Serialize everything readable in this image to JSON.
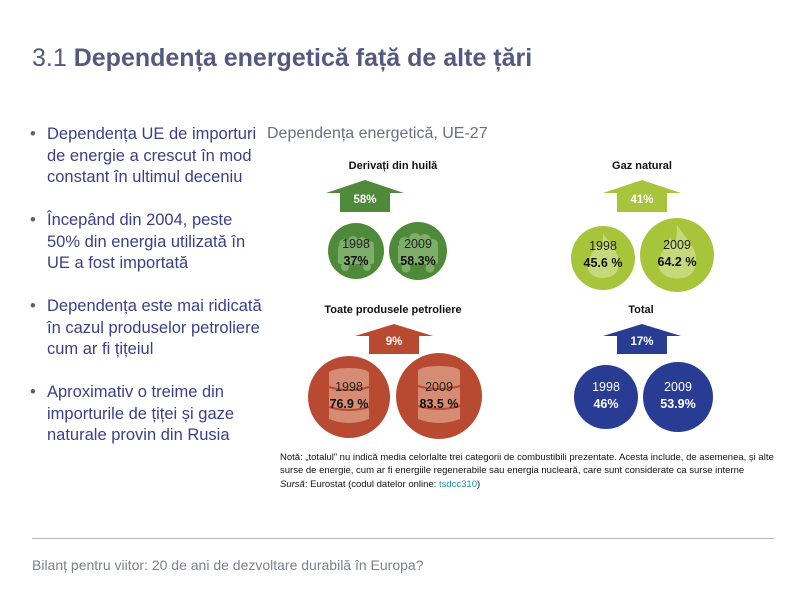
{
  "slide": {
    "title_number": "3.1",
    "title_text": "Dependența energetică față de alte țări"
  },
  "bullets": [
    "Dependența UE de importuri de energie a crescut în mod constant în ultimul deceniu",
    "Începând din 2004, peste 50% din energia utilizată în UE a fost importată",
    "Dependența este mai ridicată în cazul produselor petroliere cum ar fi țițeiul",
    "Aproximativ o treime din importurile de țiței și gaze naturale provin din Rusia"
  ],
  "infographic": {
    "title": "Dependența energetică, UE-27",
    "categories": [
      {
        "label": "Derivați din huilă",
        "change": "58%",
        "year_a": "1998",
        "value_a": "37%",
        "year_b": "2009",
        "value_b": "58.3%",
        "color": "#4e8a3a",
        "icon": "coal-wagon-icon"
      },
      {
        "label": "Gaz natural",
        "change": "41%",
        "year_a": "1998",
        "value_a": "45.6 %",
        "year_b": "2009",
        "value_b": "64.2 %",
        "color": "#a8c43a",
        "icon": "gas-flame-icon"
      },
      {
        "label": "Toate produsele petroliere",
        "change": "9%",
        "year_a": "1998",
        "value_a": "76.9 %",
        "year_b": "2009",
        "value_b": "83.5 %",
        "color": "#b84a32",
        "icon": "oil-barrel-icon"
      },
      {
        "label": "Total",
        "change": "17%",
        "year_a": "1998",
        "value_a": "46%",
        "year_b": "2009",
        "value_b": "53.9%",
        "color": "#283c94",
        "icon": "none"
      }
    ],
    "note": "Notă: „totalul” nu indică media celorlalte trei categorii de combustibili prezentate. Acesta include, de asemenea, și alte surse de energie, cum ar fi energiile regenerabile sau energia nucleară, care sunt considerate ca surse interne",
    "source_label": "Sursă",
    "source_text": ": Eurostat (codul datelor online: ",
    "source_code": "tsdcc310",
    "source_end": ")"
  },
  "chart_data": {
    "type": "table",
    "title": "Dependența energetică, UE-27",
    "columns": [
      "1998",
      "2009"
    ],
    "series": [
      {
        "name": "Derivați din huilă",
        "values": [
          37,
          58.3
        ],
        "change": "58%"
      },
      {
        "name": "Gaz natural",
        "values": [
          45.6,
          64.2
        ],
        "change": "41%"
      },
      {
        "name": "Toate produsele petroliere",
        "values": [
          76.9,
          83.5
        ],
        "change": "9%"
      },
      {
        "name": "Total",
        "values": [
          46,
          53.9
        ],
        "change": "17%"
      }
    ],
    "unit": "%"
  },
  "footer": {
    "text": "Bilanț pentru viitor: 20 de ani de dezvoltare durabilă în Europa?"
  }
}
